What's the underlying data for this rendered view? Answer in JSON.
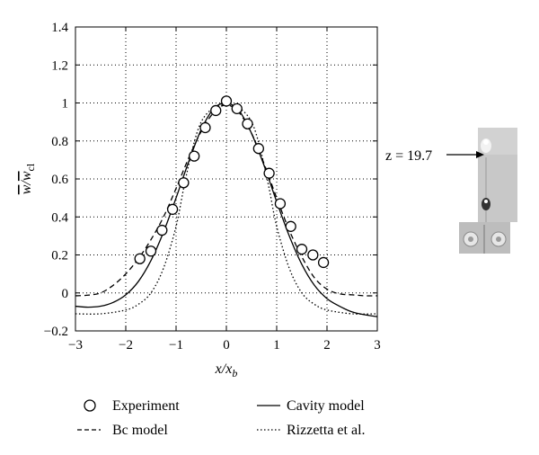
{
  "chart_data": {
    "type": "line",
    "xlabel": "x/x_b",
    "ylabel": "w̄/w̄_cl",
    "xlim": [
      -3,
      3
    ],
    "ylim": [
      -0.2,
      1.4
    ],
    "xticks": [
      -3,
      -2,
      -1,
      0,
      1,
      2,
      3
    ],
    "yticks": [
      -0.2,
      0,
      0.2,
      0.4,
      0.6,
      0.8,
      1,
      1.2,
      1.4
    ],
    "xtick_labels": [
      "−3",
      "−2",
      "−1",
      "0",
      "1",
      "2",
      "3"
    ],
    "ytick_labels": [
      "−0.2",
      "0",
      "0.2",
      "0.4",
      "0.6",
      "0.8",
      "1",
      "1.2",
      "1.4"
    ],
    "grid": true,
    "legend_position": "below",
    "series": [
      {
        "name": "Experiment",
        "style": "circles",
        "x": [
          -1.72,
          -1.5,
          -1.28,
          -1.07,
          -0.85,
          -0.64,
          -0.42,
          -0.21,
          0.0,
          0.21,
          0.42,
          0.64,
          0.85,
          1.07,
          1.28,
          1.5,
          1.72,
          1.93
        ],
        "y": [
          0.18,
          0.22,
          0.33,
          0.44,
          0.58,
          0.72,
          0.87,
          0.96,
          1.01,
          0.97,
          0.89,
          0.76,
          0.63,
          0.47,
          0.35,
          0.23,
          0.2,
          0.16
        ]
      },
      {
        "name": "Cavity model",
        "style": "solid",
        "x": [
          -3.0,
          -2.75,
          -2.5,
          -2.25,
          -2.0,
          -1.75,
          -1.5,
          -1.25,
          -1.0,
          -0.75,
          -0.5,
          -0.25,
          0.0,
          0.25,
          0.5,
          0.75,
          1.0,
          1.25,
          1.5,
          1.75,
          2.0,
          2.25,
          2.5,
          2.75,
          3.0
        ],
        "y": [
          -0.07,
          -0.075,
          -0.07,
          -0.05,
          -0.01,
          0.06,
          0.17,
          0.32,
          0.5,
          0.69,
          0.86,
          0.97,
          1.0,
          0.96,
          0.84,
          0.67,
          0.48,
          0.3,
          0.15,
          0.04,
          -0.03,
          -0.07,
          -0.1,
          -0.115,
          -0.125
        ]
      },
      {
        "name": "Bc model",
        "style": "dashed",
        "x": [
          -3.0,
          -2.75,
          -2.5,
          -2.25,
          -2.0,
          -1.75,
          -1.5,
          -1.25,
          -1.0,
          -0.75,
          -0.5,
          -0.25,
          0.0,
          0.25,
          0.5,
          0.75,
          1.0,
          1.25,
          1.5,
          1.75,
          2.0,
          2.25,
          2.5,
          2.75,
          3.0
        ],
        "y": [
          -0.015,
          -0.012,
          0.0,
          0.04,
          0.1,
          0.18,
          0.28,
          0.4,
          0.55,
          0.71,
          0.85,
          0.95,
          0.99,
          0.95,
          0.84,
          0.68,
          0.5,
          0.33,
          0.19,
          0.08,
          0.02,
          -0.005,
          -0.01,
          -0.015,
          -0.015
        ]
      },
      {
        "name": "Rizzetta et al.",
        "style": "dotted",
        "x": [
          -3.0,
          -2.5,
          -2.0,
          -1.75,
          -1.5,
          -1.25,
          -1.0,
          -0.85,
          -0.7,
          -0.55,
          -0.4,
          -0.2,
          0.0,
          0.2,
          0.4,
          0.55,
          0.7,
          0.85,
          1.0,
          1.25,
          1.5,
          1.75,
          2.0,
          2.5,
          3.0
        ],
        "y": [
          -0.11,
          -0.11,
          -0.09,
          -0.06,
          0.0,
          0.13,
          0.35,
          0.55,
          0.73,
          0.87,
          0.94,
          0.98,
          0.99,
          0.98,
          0.94,
          0.87,
          0.73,
          0.55,
          0.35,
          0.13,
          0.0,
          -0.06,
          -0.09,
          -0.11,
          -0.11
        ]
      }
    ]
  },
  "annotation": {
    "text": "z = 19.7"
  },
  "legend": {
    "items": [
      {
        "label": "Experiment",
        "style": "circles"
      },
      {
        "label": "Cavity model",
        "style": "solid"
      },
      {
        "label": "Bc model",
        "style": "dashed"
      },
      {
        "label": "Rizzetta et al.",
        "style": "dotted"
      }
    ]
  }
}
